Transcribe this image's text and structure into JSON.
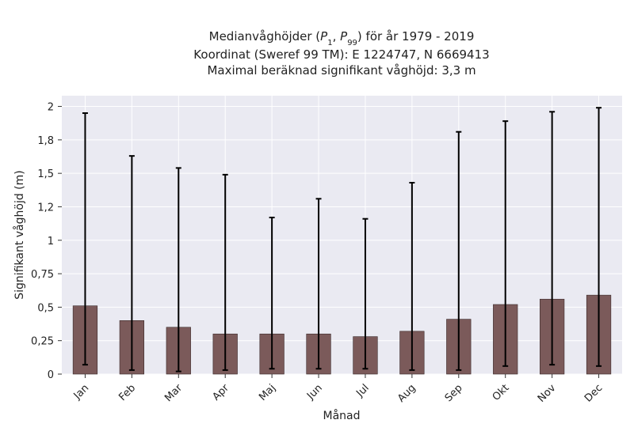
{
  "chart_data": {
    "type": "bar",
    "title_lines": [
      "Medianvåghöjder (P1, P99) för år 1979 - 2019",
      "Koordinat (Sweref 99 TM): E 1224747, N 6669413",
      "Maximal beräknad signifikant våghöjd: 3,3 m"
    ],
    "xlabel": "Månad",
    "ylabel": "Signifikant våghöjd (m)",
    "categories": [
      "Jan",
      "Feb",
      "Mar",
      "Apr",
      "Maj",
      "Jun",
      "Jul",
      "Aug",
      "Sep",
      "Okt",
      "Nov",
      "Dec"
    ],
    "values": [
      0.51,
      0.4,
      0.35,
      0.3,
      0.3,
      0.3,
      0.28,
      0.32,
      0.41,
      0.52,
      0.56,
      0.59
    ],
    "err_low": [
      0.07,
      0.03,
      0.02,
      0.03,
      0.04,
      0.04,
      0.04,
      0.03,
      0.03,
      0.06,
      0.07,
      0.06
    ],
    "err_high": [
      1.95,
      1.63,
      1.54,
      1.49,
      1.17,
      1.31,
      1.16,
      1.43,
      1.81,
      1.89,
      1.96,
      1.99
    ],
    "ylim": [
      0,
      2.08
    ],
    "yticks": [
      0,
      0.25,
      0.5,
      0.75,
      1,
      1.25,
      1.5,
      1.75,
      2
    ],
    "ytick_labels": [
      "0",
      "0,25",
      "0,5",
      "0,75",
      "1",
      "1,2",
      "1,5",
      "1,8",
      "2"
    ],
    "grid": true,
    "colors": {
      "bar": "#7b5a5a",
      "plot_background": "#eaeaf2",
      "grid": "#ffffff",
      "error_bar": "#000000"
    }
  }
}
